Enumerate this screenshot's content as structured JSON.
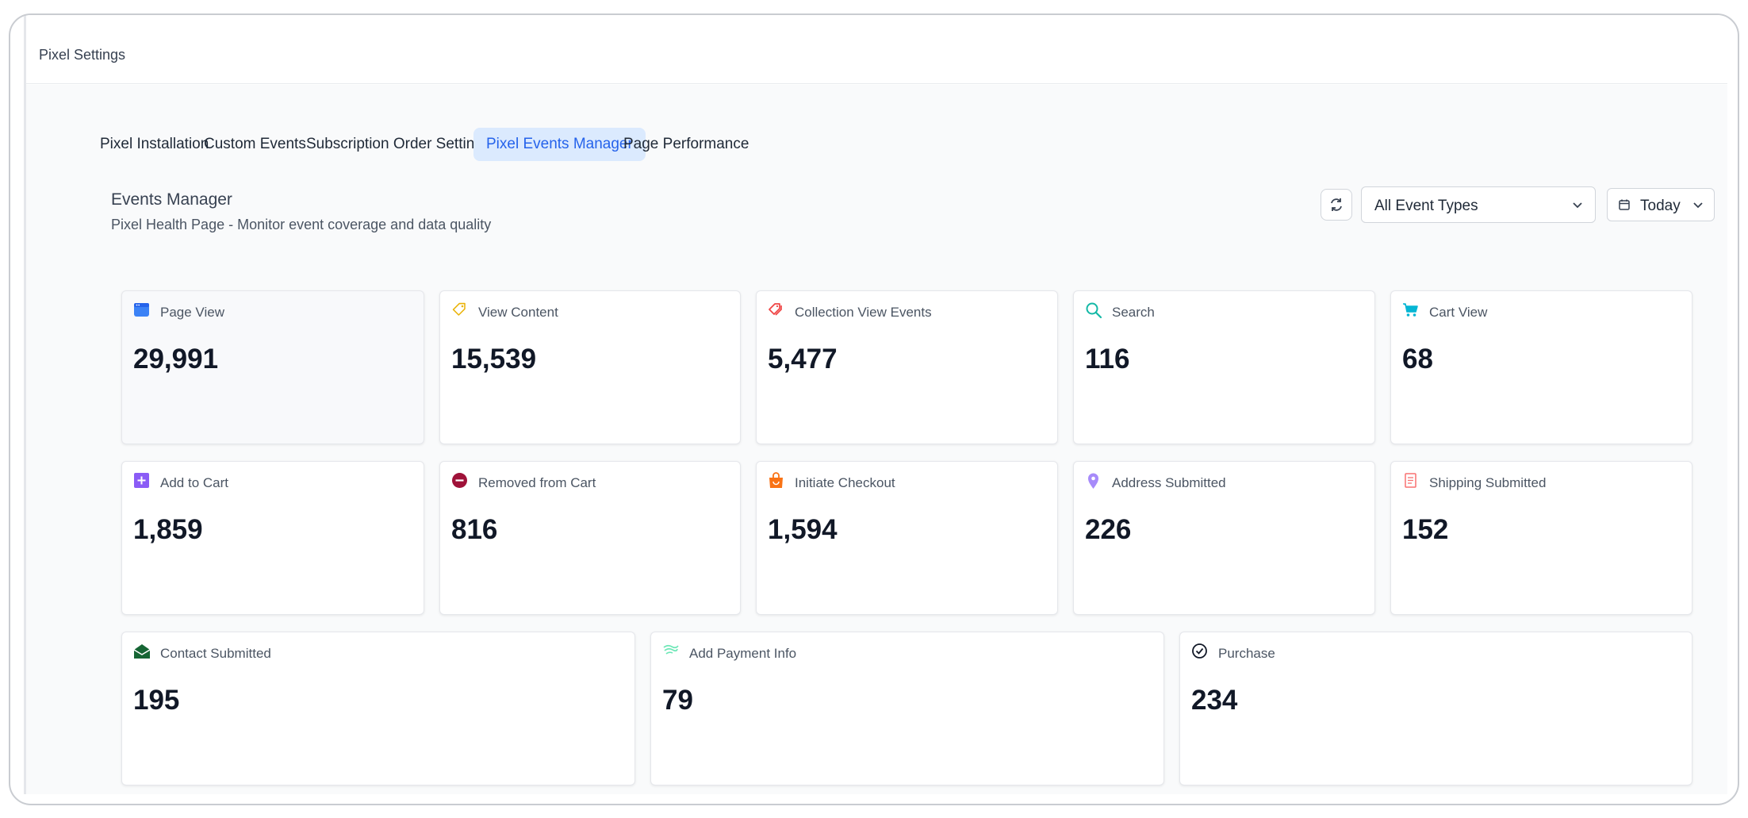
{
  "header": {
    "title": "Pixel Settings"
  },
  "tabs": [
    {
      "label": "Pixel Installation",
      "active": false
    },
    {
      "label": "Custom Events",
      "active": false
    },
    {
      "label": "Subscription Order Settings",
      "active": false
    },
    {
      "label": "Pixel Events Manager",
      "active": true
    },
    {
      "label": "Page Performance",
      "active": false
    }
  ],
  "section": {
    "title": "Events Manager",
    "subtitle": "Pixel Health Page - Monitor event coverage and data quality"
  },
  "controls": {
    "refresh_icon": "refresh-icon",
    "event_type_select": "All Event Types",
    "date_range": "Today"
  },
  "events": [
    {
      "label": "Page View",
      "value": "29,991",
      "icon": "browser-window-icon",
      "color": "#3b82f6"
    },
    {
      "label": "View Content",
      "value": "15,539",
      "icon": "tag-icon",
      "color": "#eab308"
    },
    {
      "label": "Collection View Events",
      "value": "5,477",
      "icon": "tags-icon",
      "color": "#ef4444"
    },
    {
      "label": "Search",
      "value": "116",
      "icon": "search-icon",
      "color": "#14b8a6"
    },
    {
      "label": "Cart View",
      "value": "68",
      "icon": "cart-icon",
      "color": "#06b6d4"
    },
    {
      "label": "Add to Cart",
      "value": "1,859",
      "icon": "plus-square-icon",
      "color": "#8b5cf6"
    },
    {
      "label": "Removed from Cart",
      "value": "816",
      "icon": "minus-circle-icon",
      "color": "#9f1239"
    },
    {
      "label": "Initiate Checkout",
      "value": "1,594",
      "icon": "shopping-bag-icon",
      "color": "#f97316"
    },
    {
      "label": "Address Submitted",
      "value": "226",
      "icon": "map-pin-icon",
      "color": "#a78bfa"
    },
    {
      "label": "Shipping Submitted",
      "value": "152",
      "icon": "receipt-icon",
      "color": "#f87171"
    },
    {
      "label": "Contact Submitted",
      "value": "195",
      "icon": "envelope-open-icon",
      "color": "#166534"
    },
    {
      "label": "Add Payment Info",
      "value": "79",
      "icon": "payment-wave-icon",
      "color": "#6ee7b7"
    },
    {
      "label": "Purchase",
      "value": "234",
      "icon": "check-circle-icon",
      "color": "#111827"
    }
  ]
}
